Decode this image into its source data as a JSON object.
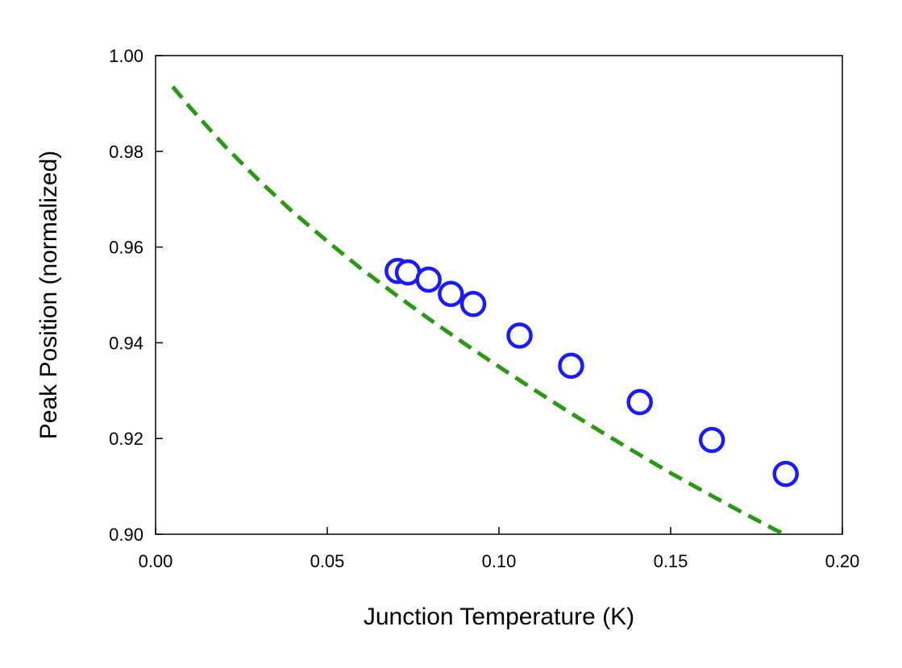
{
  "chart_data": {
    "type": "scatter",
    "title": "",
    "xlabel": "Junction Temperature  (K)",
    "ylabel": "Peak Position  (normalized)",
    "xlim": [
      0.0,
      0.2
    ],
    "ylim": [
      0.9,
      1.0
    ],
    "x_ticks": [
      "0.00",
      "0.05",
      "0.10",
      "0.15",
      "0.20"
    ],
    "y_ticks": [
      "0.90",
      "0.92",
      "0.94",
      "0.96",
      "0.98",
      "1.00"
    ],
    "grid": false,
    "legend": "none",
    "series": [
      {
        "kind": "markers",
        "marker": "open-circle",
        "color": "#1a1aff",
        "points": [
          {
            "x": 0.0705,
            "y": 0.955
          },
          {
            "x": 0.0735,
            "y": 0.9547
          },
          {
            "x": 0.0795,
            "y": 0.9532
          },
          {
            "x": 0.086,
            "y": 0.9502
          },
          {
            "x": 0.0925,
            "y": 0.9481
          },
          {
            "x": 0.106,
            "y": 0.9415
          },
          {
            "x": 0.121,
            "y": 0.9352
          },
          {
            "x": 0.141,
            "y": 0.9276
          },
          {
            "x": 0.162,
            "y": 0.9197
          },
          {
            "x": 0.1835,
            "y": 0.9126
          }
        ]
      },
      {
        "kind": "fit-line",
        "style": "dashed",
        "color": "#2a9a14",
        "points": [
          {
            "x": 0.005,
            "y": 0.9935
          },
          {
            "x": 0.01,
            "y": 0.9892
          },
          {
            "x": 0.02,
            "y": 0.9812
          },
          {
            "x": 0.03,
            "y": 0.974
          },
          {
            "x": 0.04,
            "y": 0.9673
          },
          {
            "x": 0.05,
            "y": 0.9612
          },
          {
            "x": 0.06,
            "y": 0.9554
          },
          {
            "x": 0.07,
            "y": 0.95
          },
          {
            "x": 0.08,
            "y": 0.9448
          },
          {
            "x": 0.09,
            "y": 0.9398
          },
          {
            "x": 0.1,
            "y": 0.935
          },
          {
            "x": 0.11,
            "y": 0.9303
          },
          {
            "x": 0.12,
            "y": 0.9257
          },
          {
            "x": 0.13,
            "y": 0.9213
          },
          {
            "x": 0.14,
            "y": 0.917
          },
          {
            "x": 0.15,
            "y": 0.9128
          },
          {
            "x": 0.16,
            "y": 0.9088
          },
          {
            "x": 0.17,
            "y": 0.9049
          },
          {
            "x": 0.18,
            "y": 0.9011
          },
          {
            "x": 0.19,
            "y": 0.8975
          },
          {
            "x": 0.2,
            "y": 0.894
          }
        ]
      }
    ]
  }
}
